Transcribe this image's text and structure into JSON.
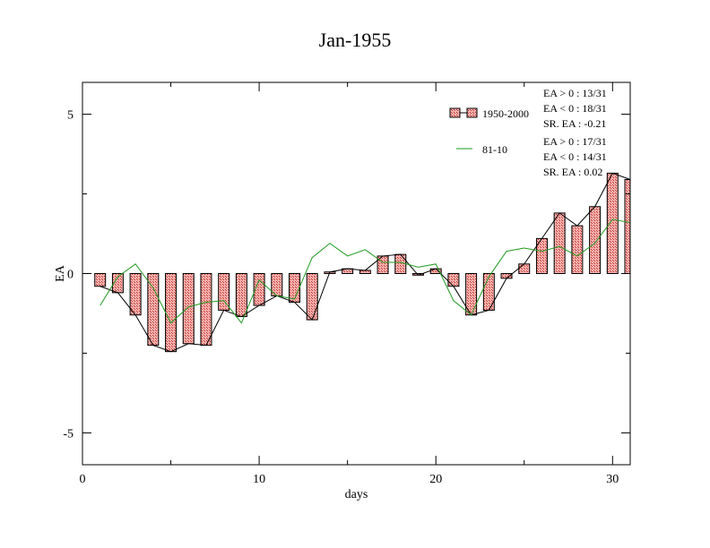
{
  "chart_data": {
    "type": "bar",
    "title": "Jan-1955",
    "xlabel": "days",
    "ylabel": "EA",
    "xlim": [
      0,
      31
    ],
    "ylim": [
      -6,
      6
    ],
    "x_ticks": [
      0,
      10,
      20,
      30
    ],
    "y_ticks": [
      5,
      0,
      -5
    ],
    "grid": false,
    "legend_position": "top-right",
    "colors": {
      "bar_fill": "#f4a3a3",
      "bar_hatch": "#c0392b",
      "bar_stroke": "#000000",
      "green_line": "#1f9a1f",
      "black_line": "#000000"
    },
    "x": [
      1,
      2,
      3,
      4,
      5,
      6,
      7,
      8,
      9,
      10,
      11,
      12,
      13,
      14,
      15,
      16,
      17,
      18,
      19,
      20,
      21,
      22,
      23,
      24,
      25,
      26,
      27,
      28,
      29,
      30,
      31
    ],
    "series": [
      {
        "name": "1950-2000",
        "style": "bar+line",
        "values": [
          -0.4,
          -0.6,
          -1.3,
          -2.25,
          -2.45,
          -2.2,
          -2.25,
          -1.15,
          -1.35,
          -1.0,
          -0.7,
          -0.9,
          -1.45,
          0.05,
          0.15,
          0.1,
          0.55,
          0.6,
          -0.05,
          0.15,
          -0.4,
          -1.3,
          -1.15,
          -0.15,
          0.3,
          1.1,
          1.9,
          1.5,
          2.1,
          3.15,
          2.95
        ],
        "stats": [
          "EA > 0 : 13/31",
          "EA < 0 : 18/31",
          "SR. EA : -0.21"
        ]
      },
      {
        "name": "81-10",
        "style": "line",
        "values": [
          -1.0,
          -0.1,
          0.3,
          -0.45,
          -1.55,
          -1.05,
          -0.9,
          -0.85,
          -1.55,
          -0.2,
          -0.7,
          -0.8,
          0.5,
          0.95,
          0.55,
          0.75,
          0.35,
          0.35,
          0.2,
          0.3,
          -0.85,
          -1.3,
          -0.1,
          0.7,
          0.8,
          0.7,
          0.85,
          0.55,
          0.95,
          1.7,
          1.6
        ],
        "stats": [
          "EA > 0 : 17/31",
          "EA < 0 : 14/31",
          "SR. EA :  0.02"
        ]
      }
    ]
  }
}
